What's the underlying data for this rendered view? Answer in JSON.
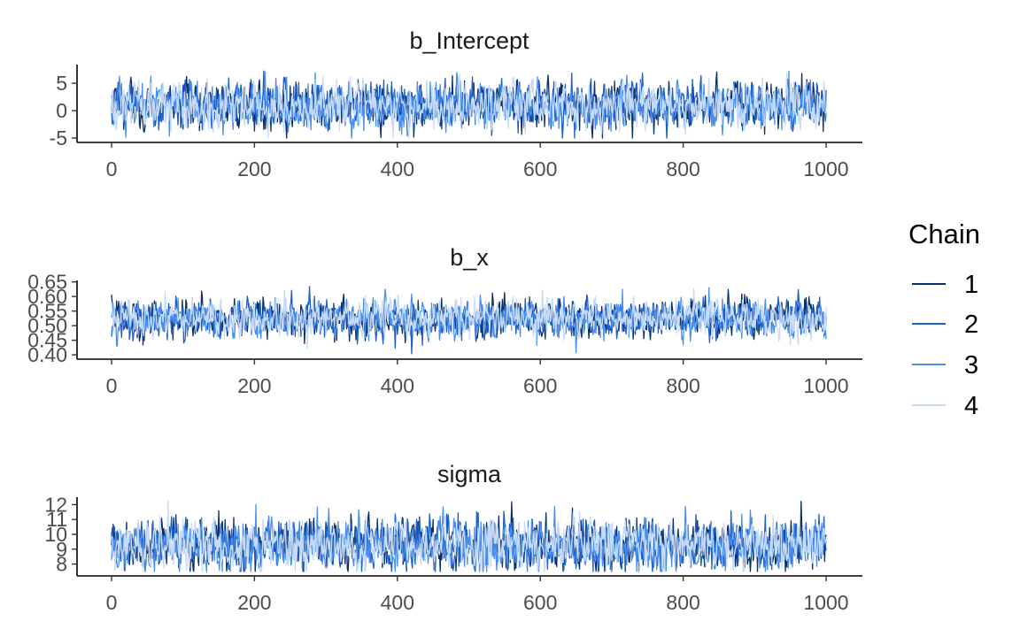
{
  "chart_data": [
    {
      "type": "line",
      "title": "b_Intercept",
      "xlim": [
        0,
        1000
      ],
      "ylim": [
        -5.8,
        8.4
      ],
      "x_ticks": [
        0,
        200,
        400,
        600,
        800,
        1000
      ],
      "y_ticks": [
        -5,
        0,
        5
      ],
      "y_tick_labels": [
        "-5",
        "0",
        "5"
      ],
      "series_center": 1.0,
      "series_spread": 2.1,
      "series_min": -5.0,
      "series_max": 8.2,
      "iterations": 1000
    },
    {
      "type": "line",
      "title": "b_x",
      "xlim": [
        0,
        1000
      ],
      "ylim": [
        0.385,
        0.655
      ],
      "x_ticks": [
        0,
        200,
        400,
        600,
        800,
        1000
      ],
      "y_ticks": [
        0.4,
        0.45,
        0.5,
        0.55,
        0.6,
        0.65
      ],
      "y_tick_labels": [
        "0.40",
        "0.45",
        "0.50",
        "0.55",
        "0.60",
        "0.65"
      ],
      "series_center": 0.525,
      "series_spread": 0.032,
      "series_min": 0.39,
      "series_max": 0.64,
      "iterations": 1000
    },
    {
      "type": "line",
      "title": "sigma",
      "xlim": [
        0,
        1000
      ],
      "ylim": [
        7.2,
        12.5
      ],
      "x_ticks": [
        0,
        200,
        400,
        600,
        800,
        1000
      ],
      "y_ticks": [
        8,
        9,
        10,
        11,
        12
      ],
      "y_tick_labels": [
        "8",
        "9",
        "10",
        "11",
        "12"
      ],
      "series_center": 9.3,
      "series_spread": 0.85,
      "series_min": 7.5,
      "series_max": 12.4,
      "iterations": 1000
    }
  ],
  "legend": {
    "title": "Chain",
    "placement": "right",
    "entries": [
      {
        "label": "1",
        "color": "#08306B"
      },
      {
        "label": "2",
        "color": "#1F5FC6"
      },
      {
        "label": "3",
        "color": "#4A8FEE"
      },
      {
        "label": "4",
        "color": "#C6DBF7"
      }
    ]
  }
}
